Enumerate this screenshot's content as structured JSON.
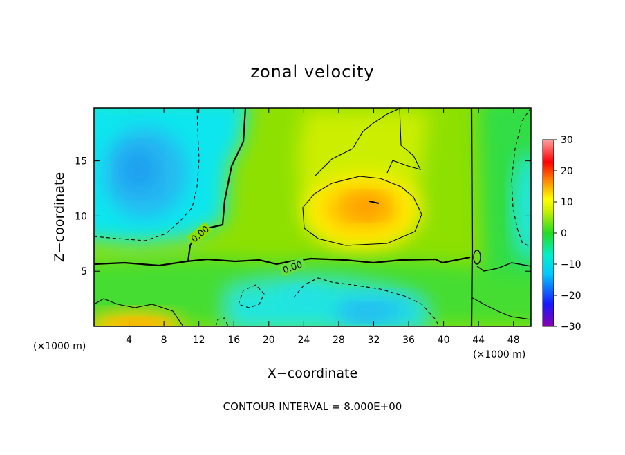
{
  "chart_data": {
    "type": "heatmap",
    "title": "zonal velocity",
    "xlabel": "X−coordinate",
    "ylabel": "Z−coordinate",
    "x_unit": "(×1000 m)",
    "z_unit": "(×1000 m)",
    "xlim": [
      0,
      50
    ],
    "ylim": [
      0,
      19.8
    ],
    "x_ticks": [
      4,
      8,
      12,
      16,
      20,
      24,
      28,
      32,
      36,
      40,
      44,
      48
    ],
    "x_tick_labels": [
      "4",
      "8",
      "12",
      "16",
      "20",
      "24",
      "28",
      "32",
      "36",
      "40",
      "44",
      "48"
    ],
    "y_ticks": [
      5,
      10,
      15
    ],
    "y_tick_labels": [
      "5",
      "10",
      "15"
    ],
    "colorbar": {
      "range": [
        -30,
        30
      ],
      "ticks": [
        30,
        20,
        10,
        0,
        -10,
        -20,
        -30
      ],
      "tick_labels": [
        "30",
        "20",
        "10",
        "0",
        "−10",
        "−20",
        "−30"
      ]
    },
    "contour_labels": [
      "0.00",
      "0.00"
    ],
    "contour_interval_text": "CONTOUR INTERVAL = 8.000E+00",
    "features": [
      {
        "kind": "min",
        "x": 5,
        "z": 14,
        "value": -10
      },
      {
        "kind": "min",
        "x": 3.5,
        "z": 16.5,
        "value": -8
      },
      {
        "kind": "max",
        "x": 31,
        "z": 10.5,
        "value": 14
      },
      {
        "kind": "max",
        "x": 32,
        "z": 11.4,
        "value": 16
      },
      {
        "kind": "max",
        "x": 5.5,
        "z": 0.3,
        "value": 12
      },
      {
        "kind": "min",
        "x": 31,
        "z": 1.5,
        "value": -8
      },
      {
        "kind": "min",
        "x": 25.5,
        "z": 2.5,
        "value": -5
      },
      {
        "kind": "min",
        "x": 19,
        "z": 2.8,
        "value": -4
      },
      {
        "kind": "min",
        "x": 49,
        "z": 12,
        "value": -3
      }
    ],
    "grid": false,
    "legend": "colorbar-right"
  }
}
